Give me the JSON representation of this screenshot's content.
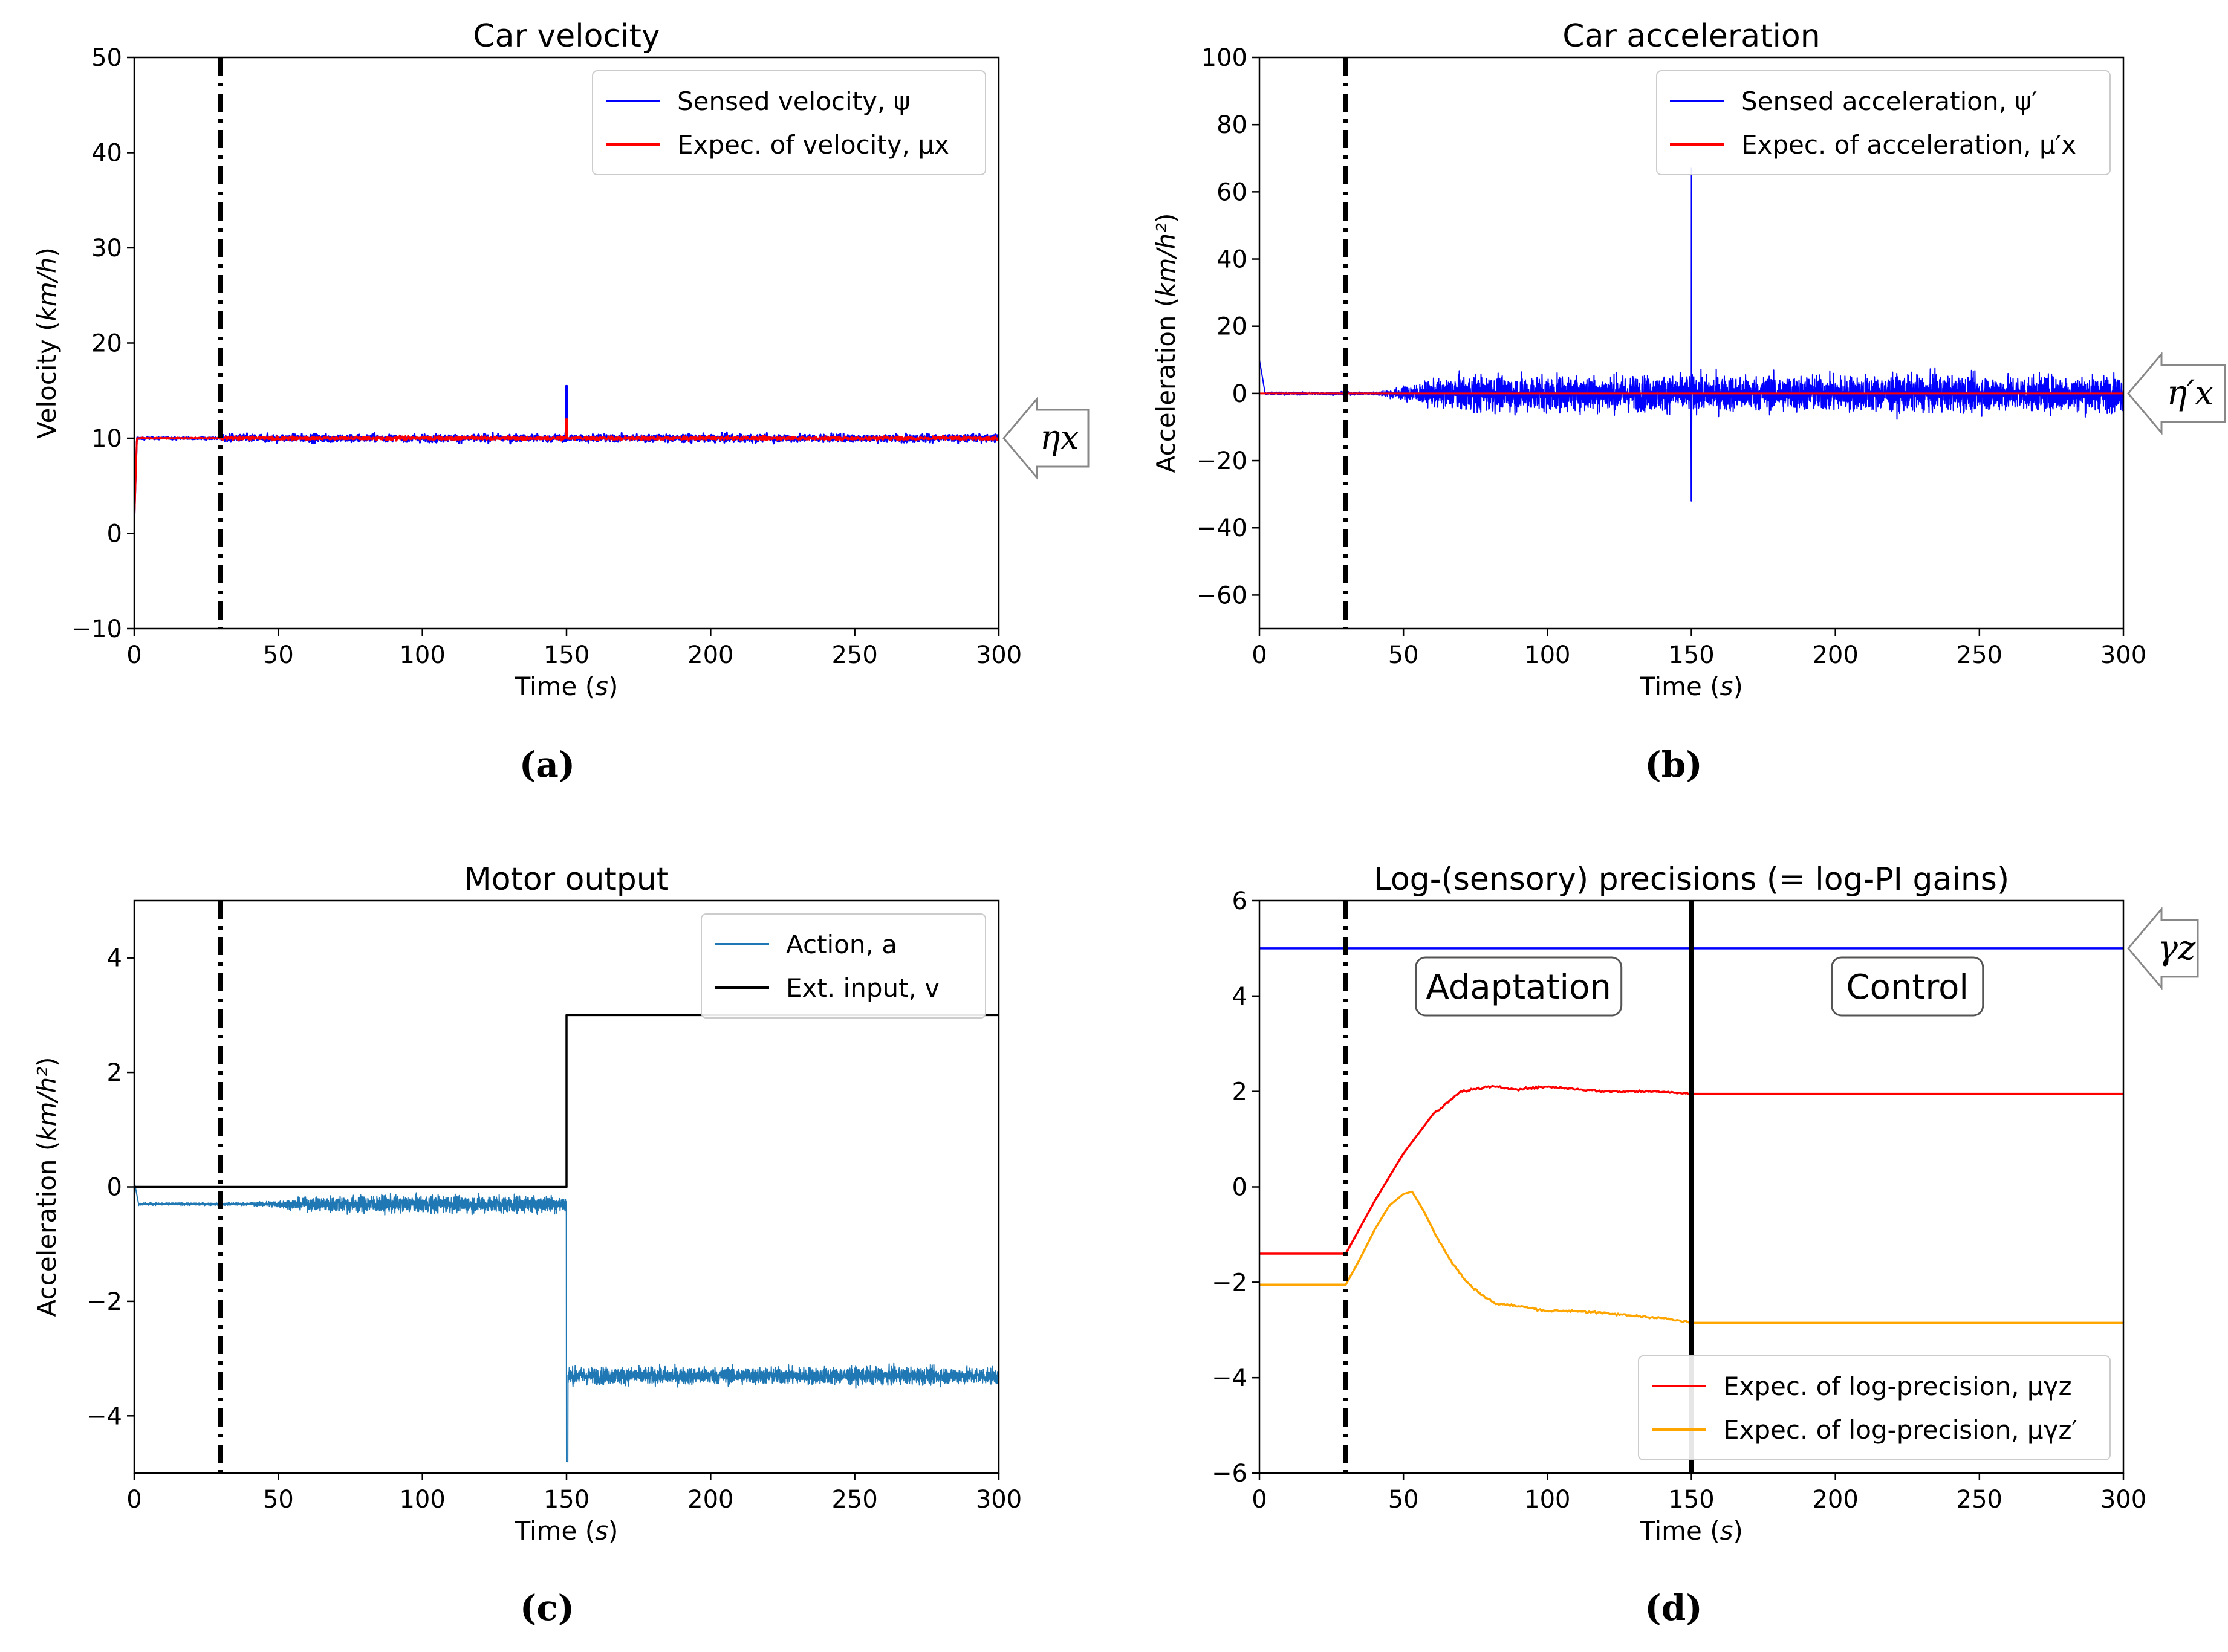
{
  "figure": {
    "panels": [
      "(a)",
      "(b)",
      "(c)",
      "(d)"
    ]
  },
  "colors": {
    "blue": "#0000ff",
    "red": "#ff0000",
    "action_blue": "#1f77b4",
    "orange": "#ffa500",
    "black": "#000000"
  },
  "chart_data": [
    {
      "id": "a",
      "type": "line",
      "title": "Car velocity",
      "xlabel": "Time (s)",
      "ylabel": "Velocity (km/h)",
      "xlim": [
        0,
        300
      ],
      "ylim": [
        -10,
        50
      ],
      "xticks": [
        0,
        50,
        100,
        150,
        200,
        250,
        300
      ],
      "yticks": [
        -10,
        0,
        10,
        20,
        30,
        40,
        50
      ],
      "vline_dashdot": 30,
      "legend_position": "top-right",
      "annotation": "ηx",
      "series": [
        {
          "name": "Sensed velocity, ψ",
          "color": "#0000ff",
          "base": 10,
          "noise_amp": 0.6,
          "spike_at": 150,
          "spike_value": 15.5,
          "start_value": 1
        },
        {
          "name": "Expec. of velocity, μx",
          "color": "#ff0000",
          "base": 10,
          "noise_amp": 0.35,
          "spike_at": 150,
          "spike_value": 12
        }
      ]
    },
    {
      "id": "b",
      "type": "line",
      "title": "Car acceleration",
      "xlabel": "Time (s)",
      "ylabel": "Acceleration (km/h²)",
      "xlim": [
        0,
        300
      ],
      "ylim": [
        -70,
        100
      ],
      "xticks": [
        0,
        50,
        100,
        150,
        200,
        250,
        300
      ],
      "yticks": [
        -60,
        -40,
        -20,
        0,
        20,
        40,
        60,
        80,
        100
      ],
      "vline_dashdot": 30,
      "legend_position": "top-right",
      "annotation": "η′x",
      "series": [
        {
          "name": "Sensed acceleration, ψ′",
          "color": "#0000ff",
          "base": 0,
          "noise_start": 40,
          "noise_full": 70,
          "noise_amp": 8,
          "spike_at": 150,
          "spike_max": 67,
          "spike_min": -32,
          "start_value": 10
        },
        {
          "name": "Expec. of acceleration, μ′x",
          "color": "#ff0000",
          "base": 0
        }
      ]
    },
    {
      "id": "c",
      "type": "line",
      "title": "Motor output",
      "xlabel": "Time (s)",
      "ylabel": "Acceleration (km/h²)",
      "xlim": [
        0,
        300
      ],
      "ylim": [
        -5,
        5
      ],
      "xticks": [
        0,
        50,
        100,
        150,
        200,
        250,
        300
      ],
      "yticks": [
        -4,
        -2,
        0,
        2,
        4
      ],
      "vline_dashdot": 30,
      "legend_position": "top-right",
      "series": [
        {
          "name": "Action, a",
          "color": "#1f77b4",
          "pre_level": -0.3,
          "post_level": -3.3,
          "step_at": 150,
          "noise_amp_pre": 0.25,
          "noise_amp_post": 0.25,
          "dip_value": -4.8,
          "start_value": 0.1
        },
        {
          "name": "Ext. input, v",
          "color": "#000000",
          "pre_level": 0,
          "post_level": 3,
          "step_at": 150
        }
      ]
    },
    {
      "id": "d",
      "type": "line",
      "title": "Log-(sensory) precisions (= log-PI gains)",
      "xlabel": "Time (s)",
      "ylabel": "",
      "xlim": [
        0,
        300
      ],
      "ylim": [
        -6,
        6
      ],
      "xticks": [
        0,
        50,
        100,
        150,
        200,
        250,
        300
      ],
      "yticks": [
        -6,
        -4,
        -2,
        0,
        2,
        4,
        6
      ],
      "vline_dashdot": 30,
      "vline_solid": 150,
      "legend_position": "bottom-right",
      "annotation": "γz",
      "region_labels": [
        "Adaptation",
        "Control"
      ],
      "series": [
        {
          "name": "γz",
          "color": "#0000ff",
          "legend": false,
          "x": [
            0,
            300
          ],
          "y": [
            5,
            5
          ]
        },
        {
          "name": "Expec. of log-precision, μγz",
          "color": "#ff0000",
          "x": [
            0,
            30,
            40,
            50,
            60,
            70,
            80,
            90,
            100,
            110,
            120,
            130,
            140,
            150,
            300
          ],
          "y": [
            -1.4,
            -1.4,
            -0.3,
            0.7,
            1.5,
            2.0,
            2.1,
            2.05,
            2.1,
            2.05,
            2.0,
            2.0,
            2.0,
            1.95,
            1.95
          ]
        },
        {
          "name": "Expec. of log-precision, μγz′",
          "color": "#ffa500",
          "x": [
            0,
            30,
            35,
            40,
            45,
            50,
            53,
            57,
            62,
            67,
            72,
            77,
            82,
            90,
            100,
            110,
            120,
            130,
            140,
            150,
            300
          ],
          "y": [
            -2.05,
            -2.05,
            -1.5,
            -0.9,
            -0.4,
            -0.15,
            -0.1,
            -0.5,
            -1.1,
            -1.6,
            -2.0,
            -2.25,
            -2.45,
            -2.5,
            -2.6,
            -2.6,
            -2.65,
            -2.7,
            -2.75,
            -2.85,
            -2.85
          ]
        }
      ]
    }
  ]
}
